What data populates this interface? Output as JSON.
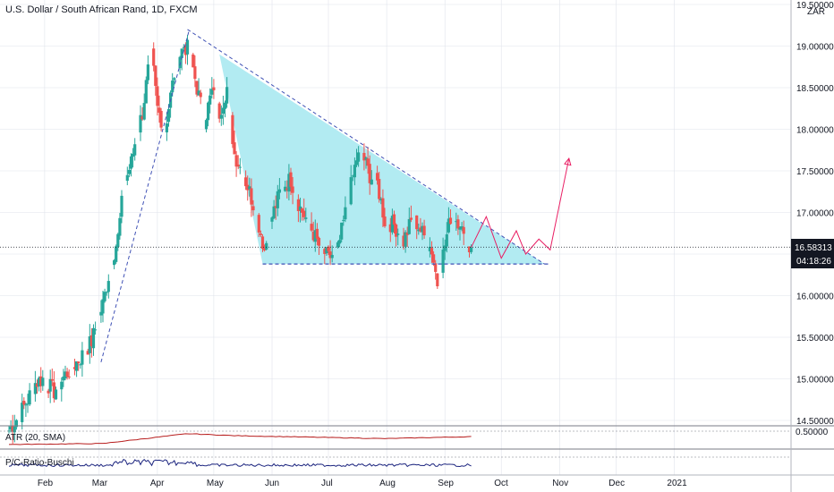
{
  "chart_title": "U.S. Dollar / South African Rand, 1D, FXCM",
  "currency_label": "ZAR",
  "atr_label": "ATR (20, SMA)",
  "pc_label": "P/C-Ratio-Buschi",
  "colors": {
    "up": "#26a69a",
    "down": "#ef5350",
    "triangle_fill": "#b2ebf2",
    "trendline": "#3f51b5",
    "projection": "#e91e63",
    "atr_line": "#b71c1c",
    "pc_line": "#1a237e",
    "grid": "#e0e3eb",
    "price_tag": "#131722"
  },
  "chart_data": {
    "type": "candlestick",
    "title": "U.S. Dollar / South African Rand, 1D, FXCM",
    "symbol": "USDZAR",
    "interval": "1D",
    "source": "FXCM",
    "x_labels": [
      "Feb",
      "Mar",
      "Apr",
      "May",
      "Jun",
      "Jul",
      "Aug",
      "Sep",
      "Oct",
      "Nov",
      "Dec",
      "2021"
    ],
    "y_ticks": [
      "14.50000",
      "15.00000",
      "15.50000",
      "16.00000",
      "16.50000",
      "17.00000",
      "17.50000",
      "18.00000",
      "18.50000",
      "19.00000",
      "19.50000"
    ],
    "ylim": [
      14.5,
      19.5
    ],
    "last_price": "16.58313",
    "countdown": "04:18:26",
    "atr_tick": "0.50000",
    "anchors": [
      {
        "d": 0,
        "v": 14.38
      },
      {
        "d": 5,
        "v": 14.55
      },
      {
        "d": 10,
        "v": 14.75
      },
      {
        "d": 14,
        "v": 14.95
      },
      {
        "d": 18,
        "v": 15.0
      },
      {
        "d": 24,
        "v": 14.85
      },
      {
        "d": 30,
        "v": 15.05
      },
      {
        "d": 38,
        "v": 15.25
      },
      {
        "d": 44,
        "v": 15.45
      },
      {
        "d": 50,
        "v": 15.9
      },
      {
        "d": 54,
        "v": 16.35
      },
      {
        "d": 58,
        "v": 16.7
      },
      {
        "d": 61,
        "v": 17.3
      },
      {
        "d": 65,
        "v": 17.6
      },
      {
        "d": 68,
        "v": 17.95
      },
      {
        "d": 71,
        "v": 18.2
      },
      {
        "d": 74,
        "v": 18.7
      },
      {
        "d": 76,
        "v": 18.9
      },
      {
        "d": 79,
        "v": 18.25
      },
      {
        "d": 83,
        "v": 18.0
      },
      {
        "d": 86,
        "v": 18.4
      },
      {
        "d": 89,
        "v": 18.8
      },
      {
        "d": 93,
        "v": 19.0
      },
      {
        "d": 96,
        "v": 18.95
      },
      {
        "d": 100,
        "v": 18.5
      },
      {
        "d": 104,
        "v": 18.1
      },
      {
        "d": 108,
        "v": 18.45
      },
      {
        "d": 112,
        "v": 18.2
      },
      {
        "d": 116,
        "v": 18.5
      },
      {
        "d": 120,
        "v": 17.7
      },
      {
        "d": 124,
        "v": 17.5
      },
      {
        "d": 128,
        "v": 17.25
      },
      {
        "d": 132,
        "v": 16.95
      },
      {
        "d": 136,
        "v": 16.55
      },
      {
        "d": 140,
        "v": 16.95
      },
      {
        "d": 145,
        "v": 17.3
      },
      {
        "d": 150,
        "v": 17.4
      },
      {
        "d": 155,
        "v": 17.05
      },
      {
        "d": 160,
        "v": 16.85
      },
      {
        "d": 165,
        "v": 16.6
      },
      {
        "d": 170,
        "v": 16.45
      },
      {
        "d": 175,
        "v": 16.55
      },
      {
        "d": 180,
        "v": 17.1
      },
      {
        "d": 185,
        "v": 17.65
      },
      {
        "d": 188,
        "v": 17.7
      },
      {
        "d": 192,
        "v": 17.45
      },
      {
        "d": 196,
        "v": 17.35
      },
      {
        "d": 200,
        "v": 16.9
      },
      {
        "d": 205,
        "v": 16.85
      },
      {
        "d": 210,
        "v": 16.65
      },
      {
        "d": 215,
        "v": 16.95
      },
      {
        "d": 220,
        "v": 16.75
      },
      {
        "d": 225,
        "v": 16.55
      },
      {
        "d": 228,
        "v": 16.15
      },
      {
        "d": 231,
        "v": 16.5
      },
      {
        "d": 235,
        "v": 16.95
      },
      {
        "d": 240,
        "v": 16.9
      },
      {
        "d": 243,
        "v": 16.55
      },
      {
        "d": 246,
        "v": 16.58
      }
    ],
    "pattern": {
      "trendline_upper": [
        {
          "d": 95,
          "v": 19.2
        },
        {
          "d": 285,
          "v": 16.38
        }
      ],
      "trendline_lower": [
        {
          "d": 49,
          "v": 15.2
        },
        {
          "d": 96,
          "v": 19.2
        }
      ],
      "support": [
        {
          "d": 135,
          "v": 16.38
        },
        {
          "d": 287,
          "v": 16.38
        }
      ],
      "triangle": [
        {
          "d": 112,
          "v": 18.9
        },
        {
          "d": 285,
          "v": 16.38
        },
        {
          "d": 135,
          "v": 16.38
        }
      ],
      "projection": [
        {
          "d": 246,
          "v": 16.58
        },
        {
          "d": 254,
          "v": 16.95
        },
        {
          "d": 262,
          "v": 16.45
        },
        {
          "d": 270,
          "v": 16.78
        },
        {
          "d": 275,
          "v": 16.5
        },
        {
          "d": 282,
          "v": 16.68
        },
        {
          "d": 288,
          "v": 16.55
        },
        {
          "d": 298,
          "v": 17.65
        }
      ]
    }
  }
}
